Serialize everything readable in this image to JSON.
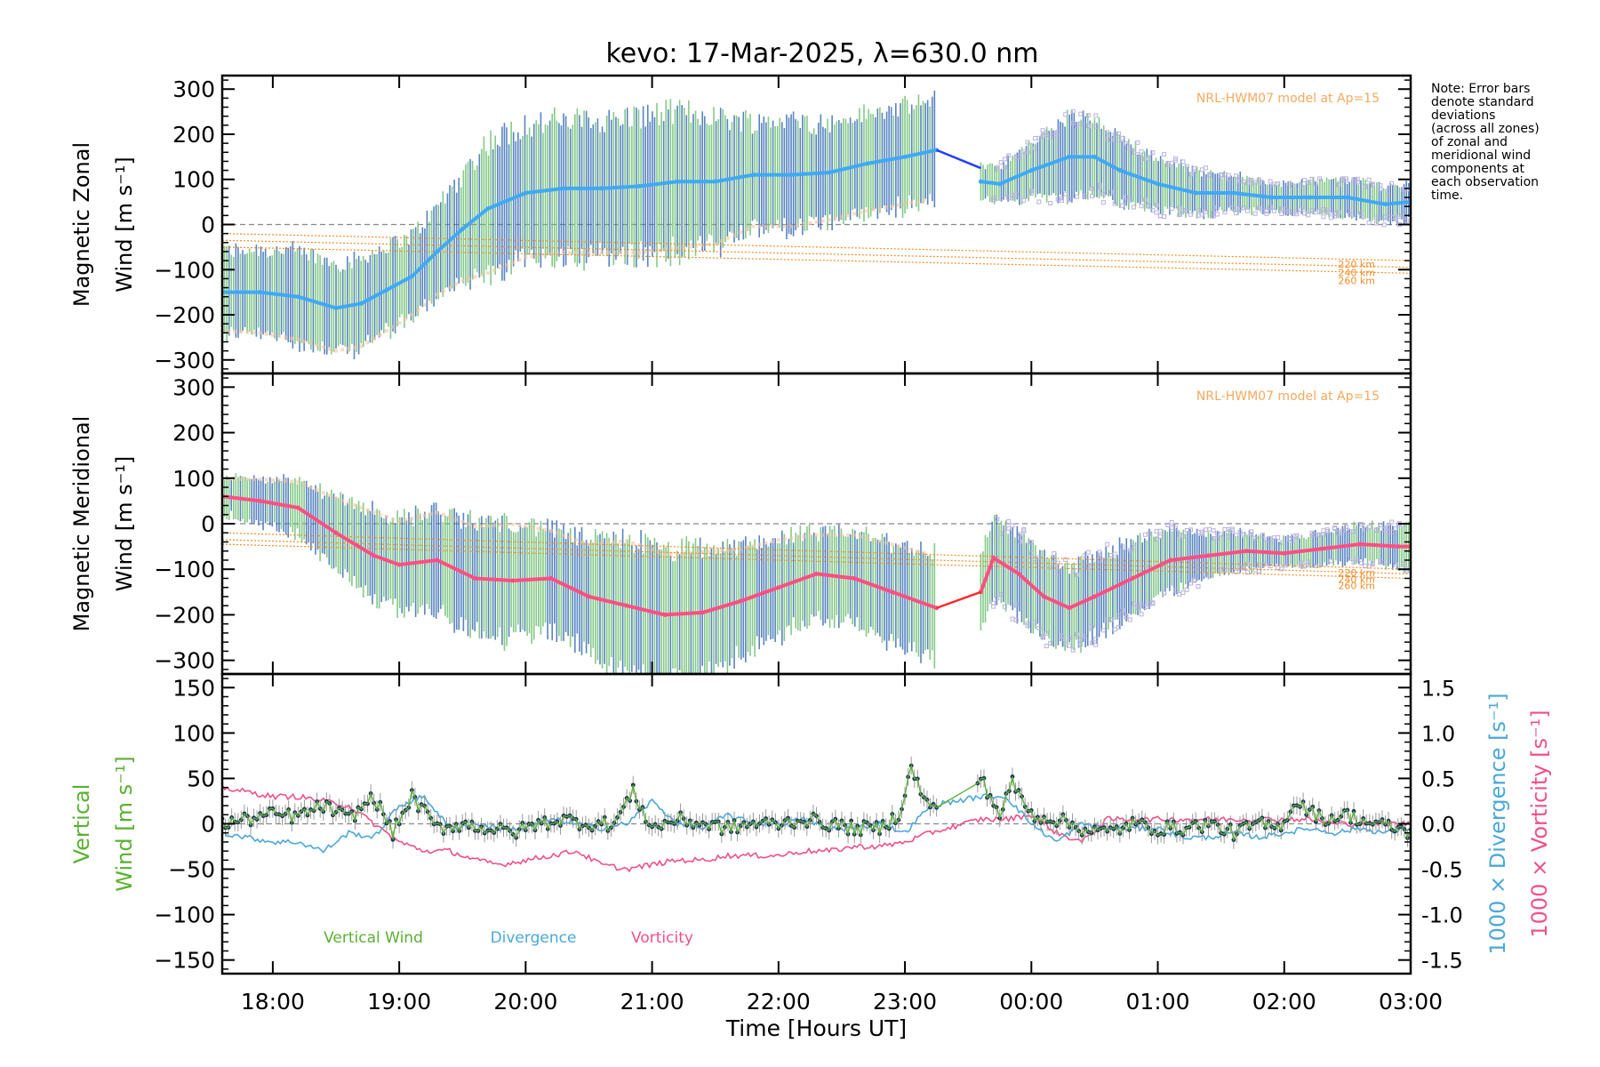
{
  "title": "kevo: 17-Mar-2025, λ=630.0 nm",
  "note": [
    "Note: Error bars",
    "denote standard",
    "deviations",
    "(across all zones)",
    "of zonal and",
    "meridional wind",
    "components at",
    "each observation",
    "time."
  ],
  "colors": {
    "zonal_mean": "#3fa9f5",
    "zonal_gap": "#1f3fff",
    "meridional_mean": "#ff4f82",
    "meridional_gap": "#ff2a2a",
    "model": "#f28c28",
    "zone_points": "#b9b2e0",
    "zone_points_warm": "#f7c3a0",
    "errorbar_a": "#3b6fb5",
    "errorbar_b": "#6fbf73",
    "vertical": "#5ab031",
    "vertical_points": "#1d3557",
    "divergence": "#4aa8d8",
    "vorticity": "#f0508a",
    "zero_line": "#888888"
  },
  "chart_data": [
    {
      "type": "line",
      "name": "zonal",
      "ylabel": [
        "Magnetic Zonal",
        "Wind [m s⁻¹]"
      ],
      "ylim": [
        -330,
        330
      ],
      "yticks": [
        -300,
        -200,
        -100,
        0,
        100,
        200,
        300
      ],
      "xlim": [
        17.6,
        27.0
      ],
      "model_label": "NRL-HWM07 model at Ap=15",
      "model_lines": [
        {
          "label": "220 km",
          "x": [
            17.6,
            27.0
          ],
          "y": [
            -20,
            -80
          ]
        },
        {
          "label": "240 km",
          "x": [
            17.6,
            27.0
          ],
          "y": [
            -35,
            -95
          ]
        },
        {
          "label": "260 km",
          "x": [
            17.6,
            27.0
          ],
          "y": [
            -50,
            -108
          ]
        }
      ],
      "series": [
        {
          "name": "mean",
          "x": [
            17.6,
            17.9,
            18.2,
            18.5,
            18.7,
            18.9,
            19.1,
            19.3,
            19.5,
            19.7,
            20.0,
            20.3,
            20.6,
            20.9,
            21.2,
            21.5,
            21.8,
            22.1,
            22.4,
            22.7,
            23.0,
            23.25
          ],
          "y": [
            -150,
            -150,
            -160,
            -185,
            -175,
            -145,
            -115,
            -60,
            -10,
            35,
            70,
            80,
            80,
            85,
            95,
            95,
            110,
            110,
            115,
            135,
            150,
            165
          ],
          "err": [
            90,
            95,
            100,
            100,
            100,
            95,
            90,
            100,
            120,
            150,
            150,
            150,
            150,
            155,
            155,
            145,
            120,
            120,
            110,
            110,
            110,
            110
          ]
        },
        {
          "name": "gap",
          "x": [
            23.25,
            23.6
          ],
          "y": [
            165,
            125
          ]
        },
        {
          "name": "mean-late",
          "x": [
            23.6,
            23.75,
            24.0,
            24.3,
            24.5,
            24.7,
            25.0,
            25.3,
            25.6,
            25.9,
            26.2,
            26.5,
            26.8,
            27.0
          ],
          "y": [
            95,
            90,
            120,
            150,
            150,
            120,
            90,
            70,
            70,
            60,
            60,
            60,
            45,
            50
          ],
          "err": [
            40,
            40,
            60,
            90,
            80,
            70,
            60,
            50,
            40,
            30,
            35,
            40,
            40,
            40
          ]
        }
      ]
    },
    {
      "type": "line",
      "name": "meridional",
      "ylabel": [
        "Magnetic Meridional",
        "Wind [m s⁻¹]"
      ],
      "ylim": [
        -330,
        330
      ],
      "yticks": [
        -300,
        -200,
        -100,
        0,
        100,
        200,
        300
      ],
      "xlim": [
        17.6,
        27.0
      ],
      "model_label": "NRL-HWM07 model at Ap=15",
      "model_lines": [
        {
          "label": "220 km",
          "x": [
            17.6,
            27.0
          ],
          "y": [
            -20,
            -100
          ]
        },
        {
          "label": "240 km",
          "x": [
            17.6,
            27.0
          ],
          "y": [
            -35,
            -110
          ]
        },
        {
          "label": "260 km",
          "x": [
            17.6,
            27.0
          ],
          "y": [
            -45,
            -120
          ]
        }
      ],
      "series": [
        {
          "name": "mean",
          "x": [
            17.6,
            17.9,
            18.2,
            18.5,
            18.8,
            19.0,
            19.3,
            19.6,
            19.9,
            20.2,
            20.5,
            20.8,
            21.1,
            21.4,
            21.7,
            22.0,
            22.3,
            22.6,
            22.9,
            23.25
          ],
          "y": [
            60,
            50,
            35,
            -20,
            -70,
            -90,
            -80,
            -120,
            -125,
            -120,
            -160,
            -180,
            -200,
            -195,
            -170,
            -140,
            -110,
            -120,
            -150,
            -185
          ],
          "err": [
            40,
            50,
            60,
            80,
            100,
            100,
            110,
            120,
            130,
            110,
            120,
            150,
            140,
            140,
            120,
            110,
            90,
            100,
            110,
            120
          ]
        },
        {
          "name": "gap",
          "x": [
            23.25,
            23.6
          ],
          "y": [
            -185,
            -150
          ]
        },
        {
          "name": "mean-late",
          "x": [
            23.6,
            23.7,
            23.9,
            24.1,
            24.3,
            24.5,
            24.8,
            25.1,
            25.4,
            25.7,
            26.0,
            26.3,
            26.6,
            26.9,
            27.0
          ],
          "y": [
            -150,
            -75,
            -110,
            -160,
            -185,
            -160,
            -120,
            -80,
            -70,
            -60,
            -65,
            -55,
            -45,
            -50,
            -50
          ],
          "err": [
            80,
            90,
            90,
            90,
            90,
            90,
            80,
            70,
            50,
            40,
            30,
            35,
            40,
            45,
            45
          ]
        }
      ]
    },
    {
      "type": "line",
      "name": "vertical",
      "ylabel": [
        "Vertical",
        "Wind [m s⁻¹]"
      ],
      "ylim": [
        -165,
        165
      ],
      "yticks": [
        -150,
        -100,
        -50,
        0,
        50,
        100,
        150
      ],
      "xlim": [
        17.6,
        27.0
      ],
      "xticks": [
        "18:00",
        "19:00",
        "20:00",
        "21:00",
        "22:00",
        "23:00",
        "00:00",
        "01:00",
        "02:00",
        "03:00"
      ],
      "xtick_values": [
        18,
        19,
        20,
        21,
        22,
        23,
        24,
        25,
        26,
        27
      ],
      "xlabel": "Time [Hours UT]",
      "y2label": [
        "1000 × Divergence [s⁻¹]",
        "1000 × Vorticity [s⁻¹]"
      ],
      "y2lim": [
        -1.65,
        1.65
      ],
      "y2ticks": [
        -1.5,
        -1.0,
        -0.5,
        0.0,
        0.5,
        1.0,
        1.5
      ],
      "legend": [
        "Vertical Wind",
        "Divergence",
        "Vorticity"
      ],
      "series": [
        {
          "name": "Vertical Wind",
          "axis": "left",
          "x": [
            17.6,
            17.8,
            18.0,
            18.2,
            18.4,
            18.6,
            18.8,
            18.95,
            19.1,
            19.3,
            19.5,
            19.7,
            19.9,
            20.1,
            20.3,
            20.5,
            20.7,
            20.85,
            21.0,
            21.2,
            21.4,
            21.6,
            21.8,
            22.0,
            22.2,
            22.4,
            22.6,
            22.8,
            22.95,
            23.05,
            23.2,
            23.6,
            23.75,
            23.85,
            24.0,
            24.2,
            24.4,
            24.6,
            24.8,
            25.0,
            25.2,
            25.4,
            25.6,
            25.8,
            25.95,
            26.1,
            26.3,
            26.5,
            26.7,
            26.9,
            27.0
          ],
          "y": [
            0,
            5,
            10,
            8,
            20,
            5,
            30,
            -10,
            30,
            -5,
            0,
            -5,
            -10,
            0,
            5,
            0,
            0,
            35,
            -5,
            5,
            0,
            -5,
            0,
            0,
            5,
            0,
            -5,
            -5,
            10,
            60,
            15,
            50,
            10,
            45,
            10,
            5,
            -5,
            -10,
            0,
            -5,
            -5,
            0,
            -10,
            0,
            -5,
            25,
            5,
            10,
            0,
            -5,
            -10
          ]
        },
        {
          "name": "Divergence",
          "axis": "right",
          "x": [
            17.6,
            17.8,
            18.0,
            18.2,
            18.4,
            18.6,
            18.8,
            19.0,
            19.2,
            19.4,
            19.6,
            19.8,
            20.0,
            20.2,
            20.4,
            20.6,
            20.8,
            21.0,
            21.2,
            21.4,
            21.6,
            21.8,
            22.0,
            22.2,
            22.4,
            22.6,
            22.8,
            23.0,
            23.2,
            23.6,
            23.8,
            24.0,
            24.2,
            24.4,
            24.6,
            24.8,
            25.0,
            25.2,
            25.4,
            25.6,
            25.8,
            26.0,
            26.2,
            26.4,
            26.6,
            26.8,
            27.0
          ],
          "y": [
            -0.1,
            -0.15,
            -0.2,
            -0.2,
            -0.3,
            -0.1,
            -0.15,
            0.2,
            0.3,
            -0.05,
            0.0,
            -0.05,
            -0.05,
            0.05,
            0.0,
            -0.05,
            0.0,
            0.25,
            0.0,
            -0.05,
            0.1,
            0.0,
            0.0,
            0.05,
            -0.05,
            -0.05,
            0.0,
            -0.1,
            0.2,
            0.3,
            0.3,
            0.0,
            -0.2,
            0.0,
            -0.05,
            -0.05,
            -0.05,
            -0.15,
            -0.15,
            -0.1,
            -0.15,
            -0.1,
            -0.05,
            -0.1,
            -0.05,
            -0.1,
            -0.05
          ]
        },
        {
          "name": "Vorticity",
          "axis": "right",
          "x": [
            17.6,
            17.8,
            18.0,
            18.2,
            18.4,
            18.6,
            18.8,
            19.0,
            19.2,
            19.4,
            19.6,
            19.8,
            20.0,
            20.2,
            20.4,
            20.6,
            20.8,
            21.0,
            21.2,
            21.4,
            21.6,
            21.8,
            22.0,
            22.2,
            22.4,
            22.6,
            22.8,
            23.0,
            23.2,
            23.6,
            23.8,
            24.0,
            24.2,
            24.4,
            24.6,
            24.8,
            25.0,
            25.2,
            25.4,
            25.6,
            25.8,
            26.0,
            26.2,
            26.4,
            26.6,
            26.8,
            27.0
          ],
          "y": [
            0.4,
            0.35,
            0.3,
            0.3,
            0.25,
            0.2,
            0.0,
            -0.2,
            -0.3,
            -0.3,
            -0.4,
            -0.45,
            -0.4,
            -0.35,
            -0.3,
            -0.45,
            -0.5,
            -0.45,
            -0.4,
            -0.4,
            -0.35,
            -0.35,
            -0.35,
            -0.3,
            -0.3,
            -0.25,
            -0.25,
            -0.2,
            -0.1,
            0.05,
            0.05,
            0.1,
            -0.1,
            -0.2,
            0.05,
            0.05,
            0.05,
            0.05,
            0.05,
            0.05,
            0.05,
            0.05,
            0.05,
            0.0,
            0.0,
            0.0,
            0.0
          ]
        }
      ]
    }
  ]
}
